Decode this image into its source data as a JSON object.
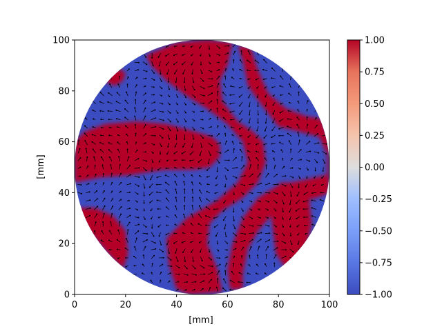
{
  "chart_data": {
    "type": "heatmap",
    "subtype": "circular-domain-field-with-vector-quiver",
    "title": "",
    "xlabel": "[mm]",
    "ylabel": "[mm]",
    "xlim": [
      0,
      100
    ],
    "ylim": [
      0,
      100
    ],
    "xticks": [
      "0",
      "20",
      "40",
      "60",
      "80",
      "100"
    ],
    "yticks": [
      "0",
      "20",
      "40",
      "60",
      "80",
      "100"
    ],
    "domain": {
      "shape": "circle",
      "center": [
        50,
        50
      ],
      "radius": 50
    },
    "colorbar": {
      "colormap": "coolwarm",
      "range": [
        -1.0,
        1.0
      ],
      "ticks": [
        "1.00",
        "0.75",
        "0.50",
        "0.25",
        "0.00",
        "−0.25",
        "−0.50",
        "−0.75",
        "−1.00"
      ],
      "low_color": "#3b4cc0",
      "mid_color": "#dddddd",
      "high_color": "#b40426"
    },
    "regions_value_plus_one": [
      {
        "name": "top-center-band",
        "polygon": [
          [
            28,
            94
          ],
          [
            40,
            99
          ],
          [
            52,
            100
          ],
          [
            62,
            99
          ],
          [
            60,
            90
          ],
          [
            57,
            84
          ],
          [
            58,
            76
          ],
          [
            64,
            68
          ],
          [
            70,
            64
          ],
          [
            74,
            60
          ],
          [
            75,
            52
          ],
          [
            72,
            44
          ],
          [
            66,
            38
          ],
          [
            58,
            33
          ],
          [
            53,
            28
          ],
          [
            52,
            20
          ],
          [
            56,
            10
          ],
          [
            58,
            1
          ],
          [
            45,
            0
          ],
          [
            40,
            2
          ],
          [
            37,
            12
          ],
          [
            36,
            22
          ],
          [
            44,
            30
          ],
          [
            56,
            37
          ],
          [
            64,
            44
          ],
          [
            68,
            52
          ],
          [
            66,
            60
          ],
          [
            60,
            67
          ],
          [
            52,
            73
          ],
          [
            44,
            78
          ],
          [
            36,
            84
          ],
          [
            30,
            90
          ]
        ]
      },
      {
        "name": "left-middle-lobe",
        "polygon": [
          [
            0,
            60
          ],
          [
            4,
            64
          ],
          [
            12,
            67
          ],
          [
            24,
            68
          ],
          [
            36,
            67
          ],
          [
            47,
            64
          ],
          [
            54,
            62
          ],
          [
            57,
            59
          ],
          [
            57,
            54
          ],
          [
            53,
            50
          ],
          [
            46,
            49
          ],
          [
            35,
            49
          ],
          [
            22,
            47
          ],
          [
            10,
            46
          ],
          [
            0,
            44
          ]
        ]
      },
      {
        "name": "right-band",
        "polygon": [
          [
            99,
            55
          ],
          [
            96,
            62
          ],
          [
            88,
            64
          ],
          [
            80,
            66
          ],
          [
            73,
            75
          ],
          [
            68,
            82
          ],
          [
            66,
            92
          ],
          [
            64,
            98
          ],
          [
            69,
            97
          ],
          [
            72,
            88
          ],
          [
            76,
            79
          ],
          [
            83,
            73
          ],
          [
            91,
            70
          ],
          [
            97,
            69
          ],
          [
            100,
            60
          ],
          [
            100,
            40
          ],
          [
            95,
            38
          ],
          [
            86,
            36
          ],
          [
            78,
            32
          ],
          [
            72,
            25
          ],
          [
            68,
            18
          ],
          [
            66,
            8
          ],
          [
            66,
            2
          ],
          [
            61,
            2
          ],
          [
            60,
            10
          ],
          [
            62,
            20
          ],
          [
            66,
            30
          ],
          [
            72,
            38
          ],
          [
            80,
            43
          ],
          [
            90,
            45
          ],
          [
            99,
            47
          ]
        ]
      },
      {
        "name": "bottom-right-lobe",
        "polygon": [
          [
            91,
            18
          ],
          [
            93,
            28
          ],
          [
            92,
            38
          ],
          [
            87,
            44
          ],
          [
            81,
            44
          ],
          [
            77,
            40
          ],
          [
            77,
            32
          ],
          [
            78,
            24
          ],
          [
            79,
            16
          ],
          [
            83,
            10
          ],
          [
            88,
            11
          ]
        ]
      },
      {
        "name": "bottom-left-lobe",
        "polygon": [
          [
            0,
            34
          ],
          [
            8,
            34
          ],
          [
            15,
            31
          ],
          [
            20,
            25
          ],
          [
            21,
            16
          ],
          [
            19,
            10
          ],
          [
            14,
            15
          ],
          [
            8,
            22
          ],
          [
            2,
            28
          ]
        ]
      },
      {
        "name": "top-left-spot",
        "polygon": [
          [
            12,
            85
          ],
          [
            14,
            88
          ],
          [
            17,
            89
          ],
          [
            20,
            87
          ],
          [
            19,
            84
          ],
          [
            16,
            82
          ],
          [
            13,
            83
          ]
        ]
      }
    ],
    "vector_field": {
      "kind": "quiver",
      "color": "#000000",
      "grid_spacing": 3.2
    }
  }
}
